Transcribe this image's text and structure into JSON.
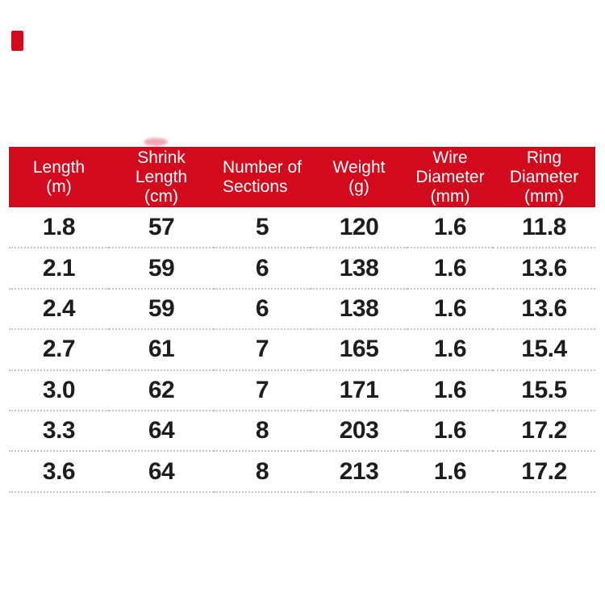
{
  "colors": {
    "page_bg": "#ffffff",
    "header_bg": "#d20a1e",
    "header_text": "#ffffff",
    "data_text": "#1d1d1d",
    "separator": "#c6c6c6",
    "corner_mark": "#d20a1e"
  },
  "table": {
    "columns": [
      {
        "id": "length_m",
        "lines": [
          "Length",
          "(m)"
        ]
      },
      {
        "id": "shrink_length_cm",
        "lines": [
          "Shrink",
          "Length",
          "(cm)"
        ]
      },
      {
        "id": "number_of_sections",
        "lines": [
          "Number of",
          "Sections"
        ]
      },
      {
        "id": "weight_g",
        "lines": [
          "Weight",
          "(g)"
        ]
      },
      {
        "id": "wire_diameter_mm",
        "lines": [
          "Wire",
          "Diameter",
          "(mm)"
        ]
      },
      {
        "id": "ring_diameter_mm",
        "lines": [
          "Ring",
          "Diameter",
          "(mm)"
        ]
      }
    ],
    "rows": [
      [
        "1.8",
        "57",
        "5",
        "120",
        "1.6",
        "11.8"
      ],
      [
        "2.1",
        "59",
        "6",
        "138",
        "1.6",
        "13.6"
      ],
      [
        "2.4",
        "59",
        "6",
        "138",
        "1.6",
        "13.6"
      ],
      [
        "2.7",
        "61",
        "7",
        "165",
        "1.6",
        "15.4"
      ],
      [
        "3.0",
        "62",
        "7",
        "171",
        "1.6",
        "15.5"
      ],
      [
        "3.3",
        "64",
        "8",
        "203",
        "1.6",
        "17.2"
      ],
      [
        "3.6",
        "64",
        "8",
        "213",
        "1.6",
        "17.2"
      ]
    ]
  }
}
